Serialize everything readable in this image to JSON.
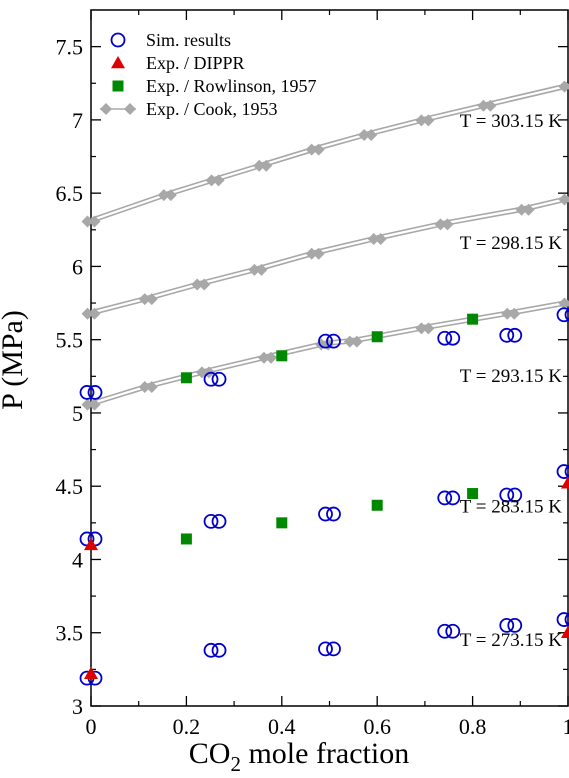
{
  "chart_data": {
    "type": "scatter",
    "title": "",
    "xlabel_main": "CO",
    "xlabel_sub": "2",
    "xlabel_rest": " mole fraction",
    "ylabel": "P (MPa)",
    "xlim": [
      0,
      1
    ],
    "ylim": [
      3,
      7.75
    ],
    "x_ticks": [
      0,
      0.2,
      0.4,
      0.6,
      0.8,
      1
    ],
    "x_tick_labels": [
      "0",
      "0.2",
      "0.4",
      "0.6",
      "0.8",
      "1"
    ],
    "y_ticks": [
      3,
      3.5,
      4,
      4.5,
      5,
      5.5,
      6,
      6.5,
      7,
      7.5
    ],
    "y_tick_labels": [
      "3",
      "3.5",
      "4",
      "4.5",
      "5",
      "5.5",
      "6",
      "6.5",
      "7",
      "7.5"
    ],
    "grid": false,
    "legend_position": "top-left",
    "temperature_labels": [
      {
        "text": "T = 303.15 K",
        "x": 1.0,
        "y": 6.95
      },
      {
        "text": "T = 298.15 K",
        "x": 1.0,
        "y": 6.12
      },
      {
        "text": "T = 293.15 K",
        "x": 1.0,
        "y": 5.21
      },
      {
        "text": "T = 283.15 K",
        "x": 1.0,
        "y": 4.32
      },
      {
        "text": "T = 273.15 K",
        "x": 1.0,
        "y": 3.41
      }
    ],
    "series": [
      {
        "name": "Sim. results",
        "marker": "open-circle",
        "color": "#0000cc",
        "points": [
          [
            0,
            3.19
          ],
          [
            0.26,
            3.38
          ],
          [
            0.5,
            3.39
          ],
          [
            0.75,
            3.51
          ],
          [
            0.88,
            3.55
          ],
          [
            1.0,
            3.59
          ],
          [
            0,
            4.14
          ],
          [
            0.26,
            4.26
          ],
          [
            0.5,
            4.31
          ],
          [
            0.75,
            4.42
          ],
          [
            0.88,
            4.44
          ],
          [
            1.0,
            4.6
          ],
          [
            0,
            5.14
          ],
          [
            0.26,
            5.23
          ],
          [
            0.5,
            5.49
          ],
          [
            0.75,
            5.51
          ],
          [
            0.88,
            5.53
          ],
          [
            1.0,
            5.67
          ]
        ]
      },
      {
        "name": "Exp. / DIPPR",
        "marker": "triangle",
        "color": "#dd0000",
        "points": [
          [
            0,
            3.22
          ],
          [
            1.0,
            3.5
          ],
          [
            0,
            4.1
          ],
          [
            1.0,
            4.52
          ]
        ]
      },
      {
        "name": "Exp. / Rowlinson, 1957",
        "marker": "square",
        "color": "#008800",
        "points": [
          [
            0.2,
            4.14
          ],
          [
            0.4,
            4.25
          ],
          [
            0.6,
            4.37
          ],
          [
            0.8,
            4.45
          ],
          [
            0.2,
            5.24
          ],
          [
            0.4,
            5.39
          ],
          [
            0.6,
            5.52
          ],
          [
            0.8,
            5.64
          ]
        ]
      },
      {
        "name": "Exp. / Cook, 1953",
        "marker": "diamond-line",
        "color": "#a8a8a8",
        "curves": [
          {
            "temperature": "293.15 K",
            "points": [
              [
                0,
                5.05
              ],
              [
                0.12,
                5.17
              ],
              [
                0.24,
                5.27
              ],
              [
                0.37,
                5.37
              ],
              [
                0.49,
                5.46
              ],
              [
                0.55,
                5.48
              ],
              [
                0.7,
                5.57
              ],
              [
                0.88,
                5.67
              ],
              [
                1.0,
                5.74
              ]
            ]
          },
          {
            "temperature": "298.15 K",
            "points": [
              [
                0,
                5.67
              ],
              [
                0.12,
                5.77
              ],
              [
                0.23,
                5.87
              ],
              [
                0.35,
                5.97
              ],
              [
                0.47,
                6.08
              ],
              [
                0.6,
                6.18
              ],
              [
                0.74,
                6.28
              ],
              [
                0.91,
                6.38
              ],
              [
                1.0,
                6.45
              ]
            ]
          },
          {
            "temperature": "303.15 K",
            "points": [
              [
                0,
                6.3
              ],
              [
                0.16,
                6.48
              ],
              [
                0.26,
                6.58
              ],
              [
                0.36,
                6.68
              ],
              [
                0.47,
                6.79
              ],
              [
                0.58,
                6.89
              ],
              [
                0.7,
                6.99
              ],
              [
                0.83,
                7.09
              ],
              [
                1.0,
                7.22
              ]
            ]
          }
        ]
      }
    ]
  }
}
